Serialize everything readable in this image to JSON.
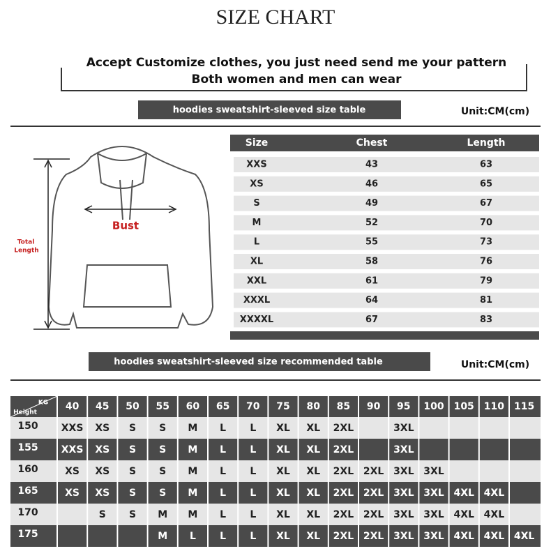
{
  "header": {
    "title": "SIZE CHART",
    "lines": [
      "Accept Customize clothes, you just need send me your pattern",
      "Both women and men can wear"
    ]
  },
  "diagram": {
    "bust": "Bust",
    "total_length": [
      "Total",
      "Length"
    ]
  },
  "size_table": {
    "title": "hoodies sweatshirt-sleeved size  table",
    "unit": "Unit:CM(cm)",
    "columns": [
      "Size",
      "Chest",
      "Length"
    ],
    "rows": [
      [
        "XXS",
        "43",
        "63"
      ],
      [
        "XS",
        "46",
        "65"
      ],
      [
        "S",
        "49",
        "67"
      ],
      [
        "M",
        "52",
        "70"
      ],
      [
        "L",
        "55",
        "73"
      ],
      [
        "XL",
        "58",
        "76"
      ],
      [
        "XXL",
        "61",
        "79"
      ],
      [
        "XXXL",
        "64",
        "81"
      ],
      [
        "XXXXL",
        "67",
        "83"
      ]
    ]
  },
  "recommend_table": {
    "title": "hoodies sweatshirt-sleeved size recommended table",
    "unit": "Unit:CM(cm)",
    "corner_kg": "KG",
    "corner_height": "Height",
    "columns": [
      "40",
      "45",
      "50",
      "55",
      "60",
      "65",
      "70",
      "75",
      "80",
      "85",
      "90",
      "95",
      "100",
      "105",
      "110",
      "115"
    ],
    "rows": [
      {
        "height": "150",
        "cells": [
          "XXS",
          "XS",
          "S",
          "S",
          "M",
          "L",
          "L",
          "XL",
          "XL",
          "2XL",
          null,
          "3XL",
          null,
          null,
          null,
          null
        ]
      },
      {
        "height": "155",
        "cells": [
          "XXS",
          "XS",
          "S",
          "S",
          "M",
          "L",
          "L",
          "XL",
          "XL",
          "2XL",
          null,
          "3XL",
          null,
          null,
          null,
          null
        ]
      },
      {
        "height": "160",
        "cells": [
          "XS",
          "XS",
          "S",
          "S",
          "M",
          "L",
          "L",
          "XL",
          "XL",
          "2XL",
          "2XL",
          "3XL",
          "3XL",
          null,
          null,
          null
        ]
      },
      {
        "height": "165",
        "cells": [
          "XS",
          "XS",
          "S",
          "S",
          "M",
          "L",
          "L",
          "XL",
          "XL",
          "2XL",
          "2XL",
          "3XL",
          "3XL",
          "4XL",
          "4XL",
          null
        ]
      },
      {
        "height": "170",
        "cells": [
          null,
          "S",
          "S",
          "M",
          "M",
          "L",
          "L",
          "XL",
          "XL",
          "2XL",
          "2XL",
          "3XL",
          "3XL",
          "4XL",
          "4XL",
          null
        ]
      },
      {
        "height": "175",
        "cells": [
          null,
          null,
          null,
          "M",
          "L",
          "L",
          "L",
          "XL",
          "XL",
          "2XL",
          "2XL",
          "3XL",
          "3XL",
          "4XL",
          "4XL",
          "4XL"
        ]
      }
    ]
  }
}
